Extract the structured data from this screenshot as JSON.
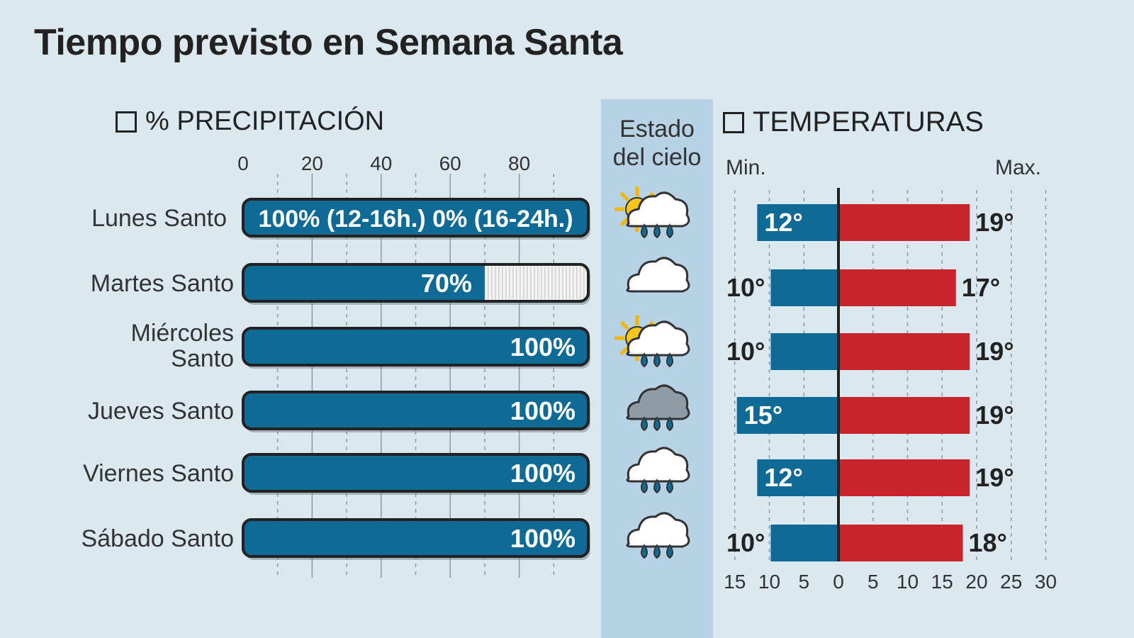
{
  "title": "Tiempo previsto en Semana Santa",
  "precip_header": "% PRECIPITACIÓN",
  "estado_header": [
    "Estado",
    "del cielo"
  ],
  "temp_header": "TEMPERATURAS",
  "min_label": "Min.",
  "max_label": "Max.",
  "colors": {
    "blue": "#0f6a96",
    "red": "#c8242b",
    "background": "#dbe8f0",
    "estado_column": "#b6d2e4"
  },
  "chart_data": [
    {
      "type": "bar",
      "title": "% PRECIPITACIÓN",
      "orientation": "horizontal",
      "categories": [
        "Lunes Santo",
        "Martes Santo",
        "Miércoles Santo",
        "Jueves Santo",
        "Viernes Santo",
        "Sábado Santo"
      ],
      "values": [
        100,
        70,
        100,
        100,
        100,
        100
      ],
      "labels": [
        "100% (12-16h.)  0% (16-24h.)",
        "70%",
        "100%",
        "100%",
        "100%",
        "100%"
      ],
      "xlim": [
        0,
        100
      ],
      "xticks": [
        "0",
        "20",
        "40",
        "60",
        "80"
      ]
    },
    {
      "type": "bar",
      "title": "TEMPERATURAS",
      "orientation": "horizontal-diverging",
      "categories": [
        "Lunes Santo",
        "Martes Santo",
        "Miércoles Santo",
        "Jueves Santo",
        "Viernes Santo",
        "Sábado Santo"
      ],
      "series": [
        {
          "name": "Min.",
          "values": [
            12,
            10,
            10,
            15,
            12,
            10
          ],
          "color": "#0f6a96"
        },
        {
          "name": "Max.",
          "values": [
            19,
            17,
            19,
            19,
            19,
            18
          ],
          "color": "#c8242b"
        }
      ],
      "xticks_left": [
        "15",
        "10",
        "5"
      ],
      "xticks_right": [
        "0",
        "5",
        "10",
        "15",
        "20",
        "25",
        "30"
      ],
      "xlim": [
        -15,
        30
      ]
    }
  ],
  "sky": [
    "sun-cloud-rain-icon",
    "cloud-icon",
    "sun-cloud-rain-icon",
    "dark-cloud-rain-icon",
    "cloud-rain-icon",
    "cloud-rain-icon"
  ]
}
